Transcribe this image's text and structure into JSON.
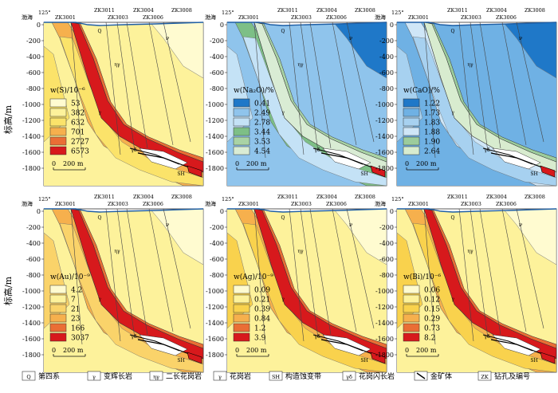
{
  "y_axis_label": "标高/m",
  "y_ticks": [
    "0",
    "-200",
    "-400",
    "-600",
    "-800",
    "-1000",
    "-1200",
    "-1400",
    "-1600",
    "-1800"
  ],
  "scale_bar": {
    "zero": "0",
    "length": "200 m"
  },
  "section_labels": {
    "bohai": "渤海",
    "angle": "125°",
    "drillholes": [
      "ZK3001",
      "ZK3011",
      "ZK3003",
      "ZK3004",
      "ZK3006",
      "ZK3008"
    ],
    "upper_marker": "Q",
    "unit_dike": "γ",
    "unit_granite": "ηγ",
    "unit_gabbro": "γδ",
    "unit_sh": "SH"
  },
  "panels": [
    {
      "id": "S",
      "title": "w(S)/10⁻⁶",
      "values": [
        "53",
        "382",
        "632",
        "701",
        "2727",
        "6573"
      ],
      "colors": [
        "#fffbd0",
        "#fdf29b",
        "#fbe36a",
        "#f6b04d",
        "#ea6e35",
        "#d7191c"
      ]
    },
    {
      "id": "Na2O",
      "title": "w(Na₂O)/%",
      "values": [
        "0.41",
        "2.49",
        "2.78",
        "3.44",
        "3.53",
        "4.54"
      ],
      "colors": [
        "#1f78c8",
        "#8fc4ec",
        "#c4e2f6",
        "#7dbf86",
        "#a9d3a5",
        "#d9ecd4"
      ]
    },
    {
      "id": "CaO",
      "title": "w(CaO)/%",
      "values": [
        "1.22",
        "1.73",
        "1.83",
        "1.88",
        "1.90",
        "2.64"
      ],
      "colors": [
        "#1f78c8",
        "#6fb1e4",
        "#a7d1f0",
        "#cfe6f7",
        "#9ccc9c",
        "#d8eccf"
      ]
    },
    {
      "id": "Au",
      "title": "w(Au)/10⁻⁹",
      "values": [
        "4.2",
        "7",
        "21",
        "23",
        "166",
        "3037"
      ],
      "colors": [
        "#fffbd0",
        "#fdf29b",
        "#fad36a",
        "#f6b04d",
        "#ea6e35",
        "#d7191c"
      ]
    },
    {
      "id": "Ag",
      "title": "w(Ag)/10⁻⁹",
      "values": [
        "0.09",
        "0.21",
        "0.39",
        "0.84",
        "1.2",
        "3.9"
      ],
      "colors": [
        "#fffbd0",
        "#fdf29b",
        "#f9d24d",
        "#f6b04d",
        "#ea6e35",
        "#d7191c"
      ]
    },
    {
      "id": "Bi",
      "title": "w(Bi)/10⁻⁶",
      "values": [
        "0.06",
        "0.12",
        "0.15",
        "0.29",
        "0.73",
        "8.2"
      ],
      "colors": [
        "#fffbd0",
        "#fdf29b",
        "#f9d24d",
        "#f6b04d",
        "#ea6e35",
        "#d7191c"
      ]
    }
  ],
  "legend": [
    {
      "symbol": "Q",
      "label": "第四系"
    },
    {
      "symbol": "γ",
      "label": "变辉长岩"
    },
    {
      "symbol": "ηγ",
      "label": "二长花岗岩"
    },
    {
      "symbol": "γ",
      "label": "花岗岩"
    },
    {
      "symbol": "SH",
      "label": "构造蚀变带"
    },
    {
      "symbol": "γδ",
      "label": "花岗闪长岩"
    },
    {
      "symbol": "",
      "label": "金矿体"
    },
    {
      "symbol": "ZK",
      "label": "钻孔及编号"
    }
  ]
}
